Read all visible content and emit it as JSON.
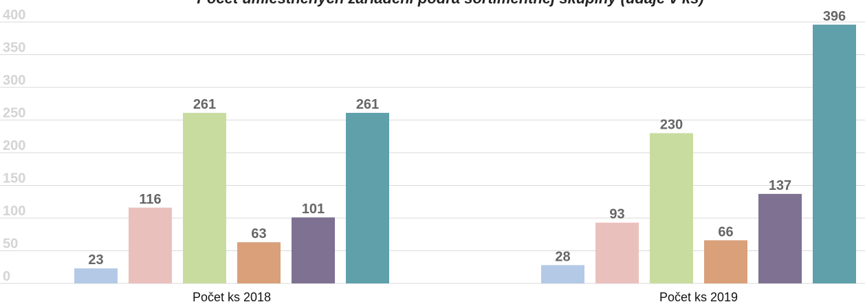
{
  "chart_data": {
    "type": "bar",
    "title": "Počet umiestnených zariadení podľa sortimentnej skupiny (údaje v ks)",
    "xlabel": "",
    "ylabel": "",
    "ylim": [
      0,
      400
    ],
    "yticks": [
      0,
      50,
      100,
      150,
      200,
      250,
      300,
      350,
      400
    ],
    "grid": true,
    "categories": [
      "Počet ks 2018",
      "Počet ks 2019"
    ],
    "series": [
      {
        "color": "#b4c9e6",
        "values": [
          23,
          28
        ]
      },
      {
        "color": "#eac0bd",
        "values": [
          116,
          93
        ]
      },
      {
        "color": "#c9dca0",
        "values": [
          261,
          230
        ]
      },
      {
        "color": "#d9a07a",
        "values": [
          63,
          66
        ]
      },
      {
        "color": "#7e7191",
        "values": [
          101,
          137
        ]
      },
      {
        "color": "#5fa0ab",
        "values": [
          261,
          396
        ]
      }
    ]
  }
}
